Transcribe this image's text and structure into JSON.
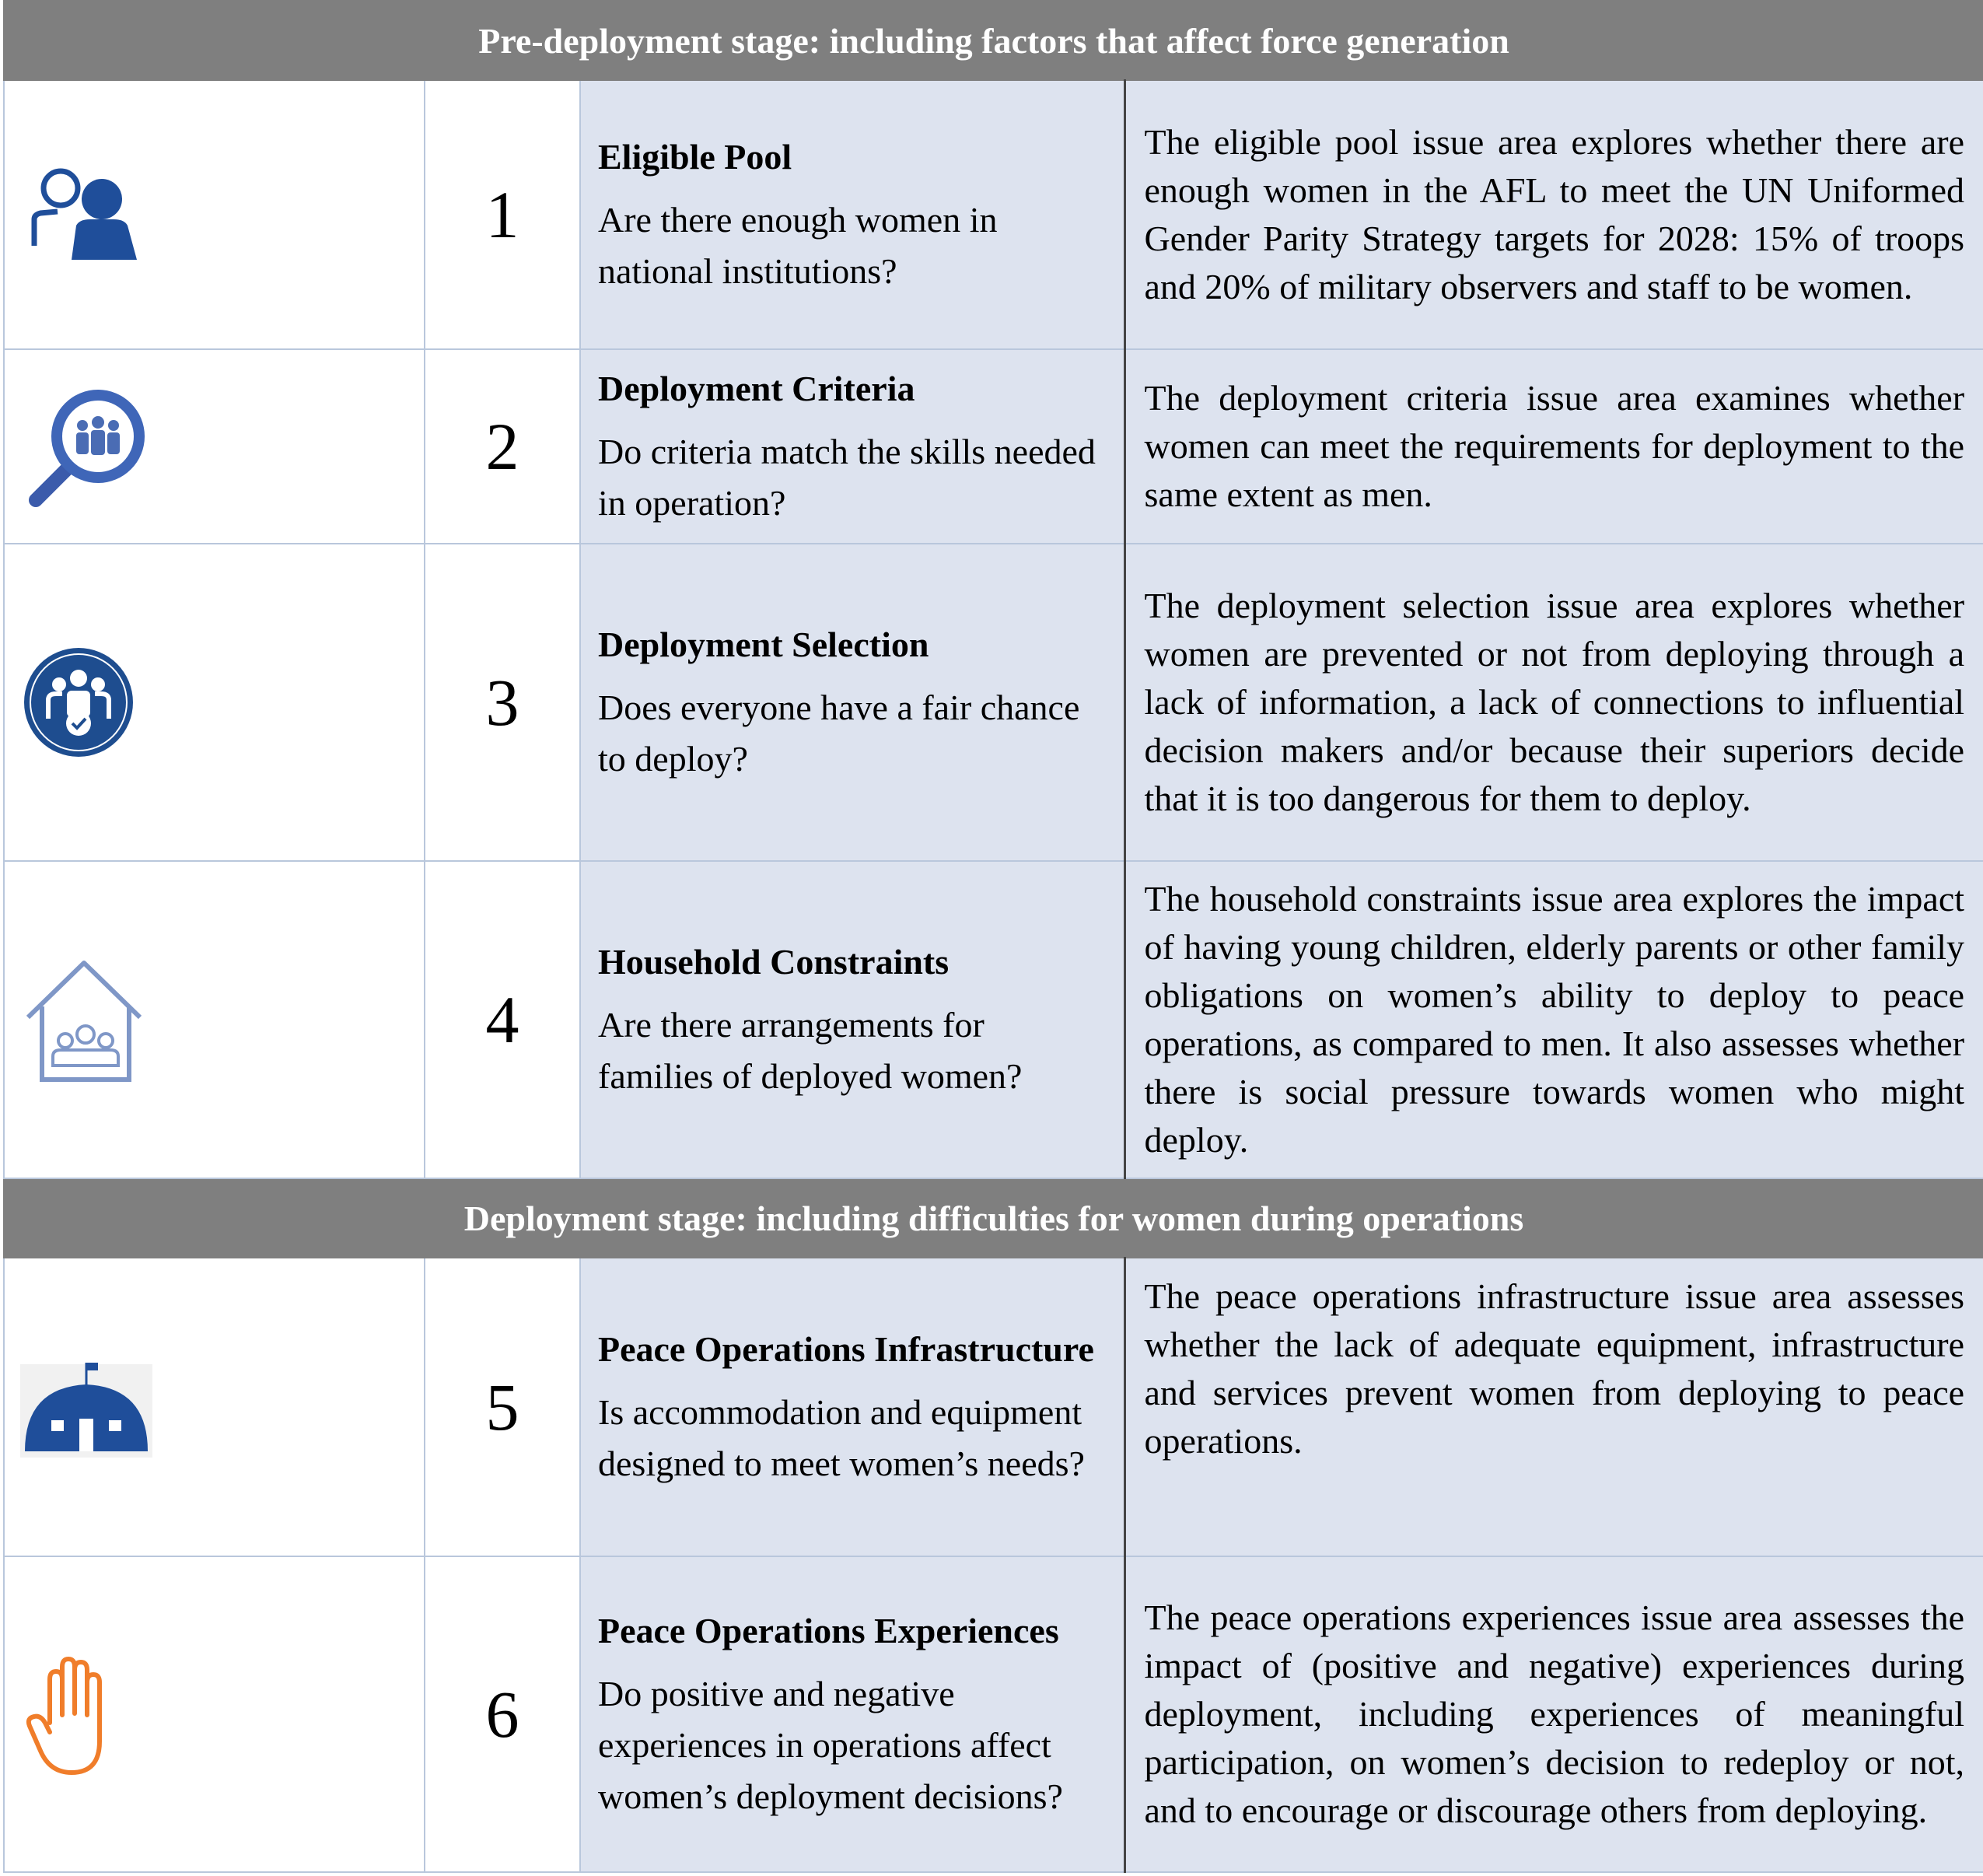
{
  "stages": [
    {
      "heading": "Pre-deployment stage: including factors that affect force generation",
      "rows": [
        {
          "icon": "eligible-pool-people-icon",
          "number": "1",
          "title": "Eligible Pool",
          "question": "Are there enough women in national institutions?",
          "description": "The eligible pool issue area explores whether there are enough women in the AFL to meet the UN Uniformed Gender Parity Strategy targets for 2028: 15% of troops and 20% of military observers and staff to be women."
        },
        {
          "icon": "magnifier-people-icon",
          "number": "2",
          "title": "Deployment Criteria",
          "question": "Do criteria match the skills needed in operation?",
          "description": "The deployment criteria issue area examines whether women can meet the requirements for deployment to the same extent as men."
        },
        {
          "icon": "group-check-icon",
          "number": "3",
          "title": "Deployment Selection",
          "question": "Does everyone have a fair chance to deploy?",
          "description": "The deployment selection issue area explores whether women are prevented or not from deploying through a lack of information, a lack of connections to influential decision makers and/or because their superiors decide that it is too dangerous for them to deploy."
        },
        {
          "icon": "house-family-icon",
          "number": "4",
          "title": "Household Constraints",
          "question": "Are there arrangements for families of deployed women?",
          "description": "The household constraints issue area explores the impact of having young children, elderly parents or other family obligations on women’s ability to deploy to peace operations, as compared to men. It also assesses whether there is social pressure towards women who might deploy."
        }
      ]
    },
    {
      "heading": "Deployment stage: including difficulties for women during operations",
      "rows": [
        {
          "icon": "dome-camp-icon",
          "number": "5",
          "title": "Peace Operations Infrastructure",
          "question": "Is accommodation and equipment designed to meet women’s needs?",
          "description": "The peace operations infrastructure issue area assesses whether the lack of adequate equipment, infrastructure  and services prevent women from deploying to peace operations."
        },
        {
          "icon": "raised-hand-icon",
          "number": "6",
          "title": "Peace Operations Experiences",
          "question": "Do positive and negative experiences in operations affect women’s deployment decisions?",
          "description": "The peace operations experiences issue area assesses the impact of (positive and negative) experiences during deployment, including experiences of meaningful participation, on women’s decision to redeploy or not, and to encourage or discourage others from deploying."
        }
      ]
    }
  ],
  "colors": {
    "stage_band": "#7f7f7f",
    "cell_fill": "#dde3ef",
    "icon_blue": "#1f4e9a",
    "icon_orange": "#f07d2a"
  }
}
